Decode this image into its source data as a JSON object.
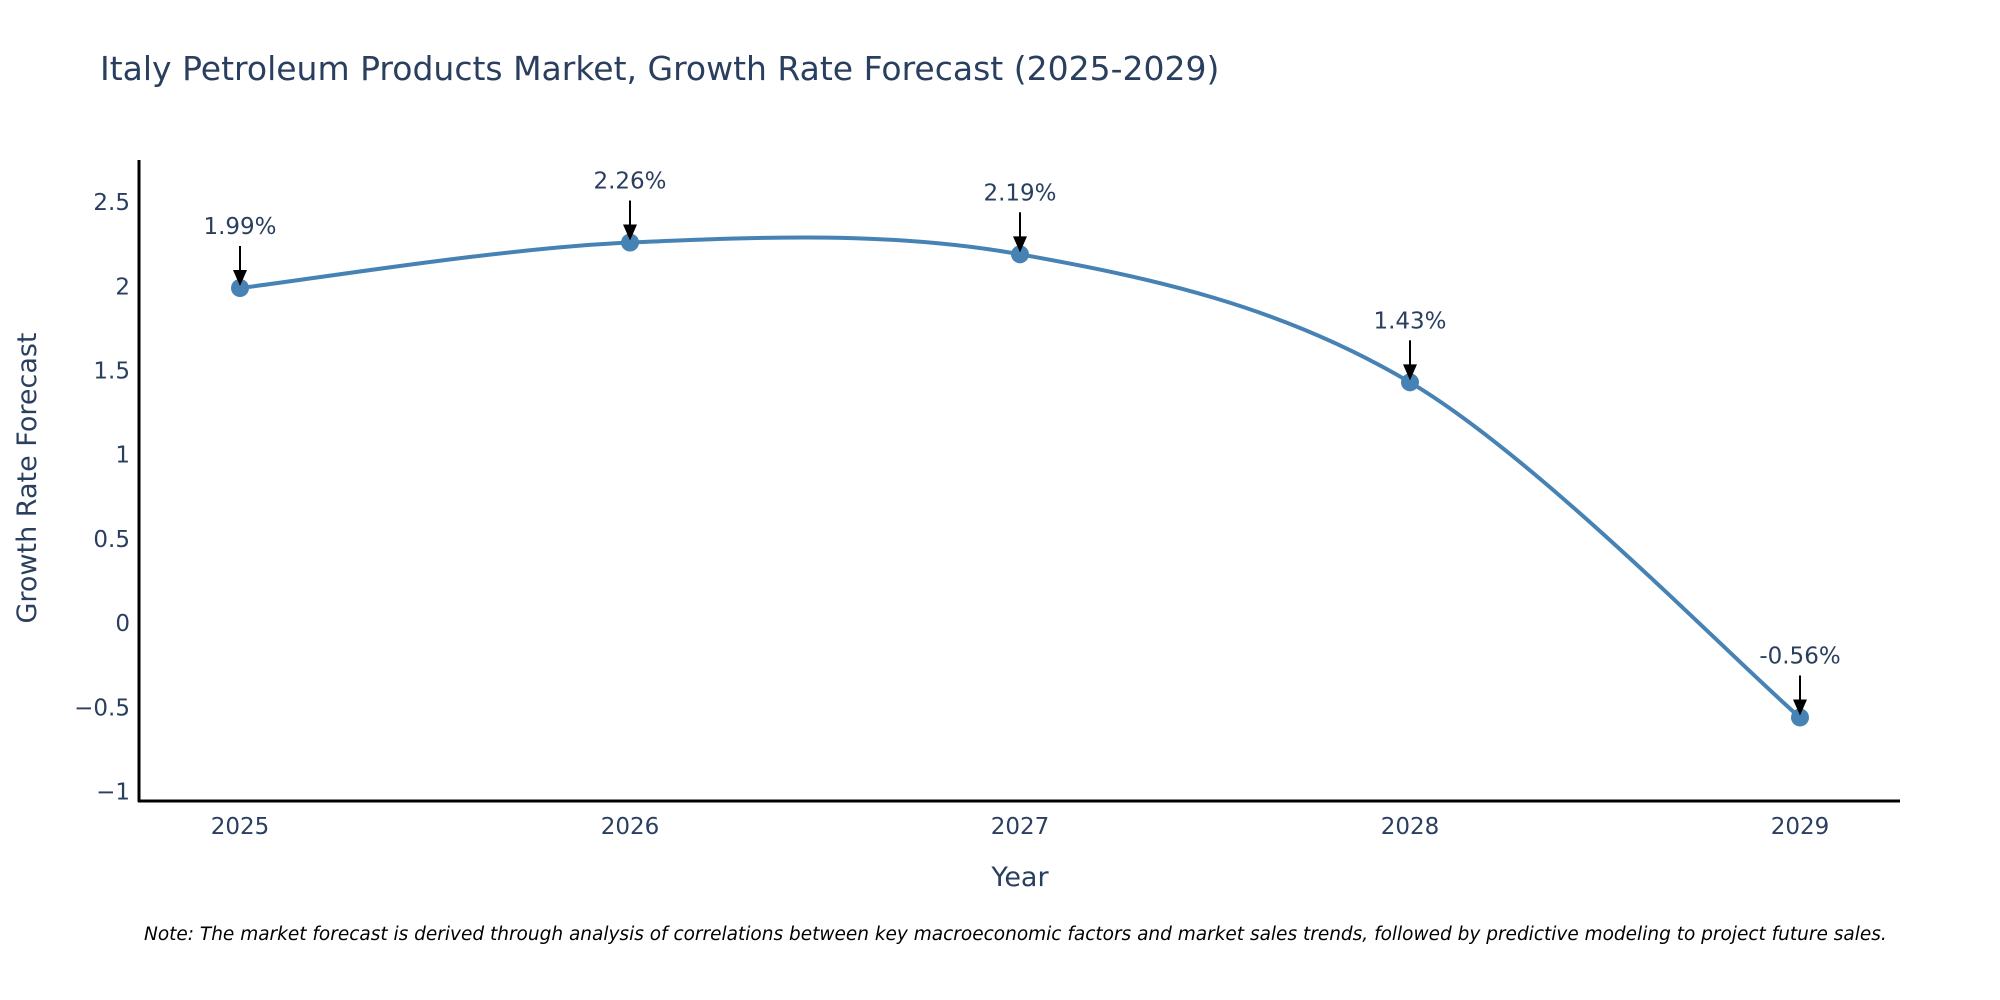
{
  "chart_data": {
    "type": "line",
    "title": "Italy Petroleum Products Market, Growth Rate Forecast (2025-2029)",
    "xlabel": "Year",
    "ylabel": "Growth Rate Forecast",
    "categories": [
      "2025",
      "2026",
      "2027",
      "2028",
      "2029"
    ],
    "series": [
      {
        "name": "Growth Rate Forecast",
        "values": [
          1.99,
          2.26,
          2.19,
          1.43,
          -0.56
        ]
      }
    ],
    "data_labels": [
      "1.99%",
      "2.26%",
      "2.19%",
      "1.43%",
      "-0.56%"
    ],
    "ylim": [
      -1.05,
      2.75
    ],
    "yticks": [
      -1,
      -0.5,
      0,
      0.5,
      1,
      1.5,
      2,
      2.5
    ],
    "ytick_labels": [
      "−1",
      "−0.5",
      "0",
      "0.5",
      "1",
      "1.5",
      "2",
      "2.5"
    ],
    "grid": false,
    "line_color": "#4682b4",
    "note": "Note: The market forecast is derived through analysis of correlations between key macroeconomic factors and market sales trends, followed by predictive modeling to project future sales."
  }
}
